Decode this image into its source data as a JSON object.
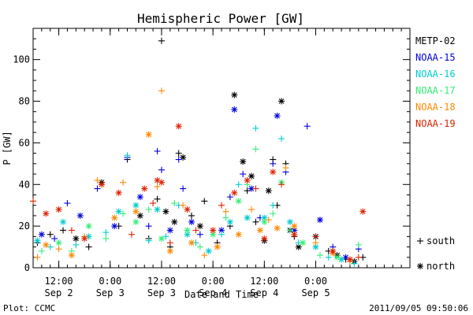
{
  "chart_data": {
    "type": "scatter",
    "title": "Hemispheric Power [GW]",
    "xlabel": "Date and Time",
    "ylabel": "P [GW]",
    "xlim": [
      "2011-09-02 06:00",
      "2011-09-05 22:00"
    ],
    "ylim": [
      0,
      115
    ],
    "y_ticks": [
      0,
      20,
      40,
      60,
      80,
      100
    ],
    "x_ticks": [
      {
        "t": "2011-09-02 12:00",
        "line1": "12:00",
        "line2": "Sep 2"
      },
      {
        "t": "2011-09-03 00:00",
        "line1": "0:00",
        "line2": "Sep 3"
      },
      {
        "t": "2011-09-03 12:00",
        "line1": "12:00",
        "line2": "Sep 3"
      },
      {
        "t": "2011-09-04 00:00",
        "line1": "0:00",
        "line2": "Sep 4"
      },
      {
        "t": "2011-09-04 12:00",
        "line1": "12:00",
        "line2": "Sep 4"
      },
      {
        "t": "2011-09-05 00:00",
        "line1": "0:00",
        "line2": "Sep 5"
      }
    ],
    "hemisphere_symbols": [
      {
        "symbol": "+",
        "label": "south"
      },
      {
        "symbol": "*",
        "label": "north"
      }
    ],
    "series": [
      {
        "name": "METP-02",
        "color": "#000000",
        "points": [
          [
            "2011-09-02 07:00",
            12,
            "+"
          ],
          [
            "2011-09-02 10:00",
            16,
            "+"
          ],
          [
            "2011-09-02 13:00",
            18,
            "+"
          ],
          [
            "2011-09-02 16:00",
            14,
            "*"
          ],
          [
            "2011-09-02 19:00",
            10,
            "+"
          ],
          [
            "2011-09-02 22:00",
            41,
            "*"
          ],
          [
            "2011-09-03 02:00",
            20,
            "+"
          ],
          [
            "2011-09-03 04:00",
            52,
            "+"
          ],
          [
            "2011-09-03 07:00",
            25,
            "*"
          ],
          [
            "2011-09-03 09:00",
            14,
            "+"
          ],
          [
            "2011-09-03 11:00",
            33,
            "+"
          ],
          [
            "2011-09-03 12:00",
            109,
            "+"
          ],
          [
            "2011-09-03 13:00",
            27,
            "*"
          ],
          [
            "2011-09-03 14:00",
            10,
            "+"
          ],
          [
            "2011-09-03 15:00",
            22,
            "*"
          ],
          [
            "2011-09-03 16:00",
            55,
            "+"
          ],
          [
            "2011-09-03 17:00",
            53,
            "*"
          ],
          [
            "2011-09-03 19:00",
            25,
            "+"
          ],
          [
            "2011-09-03 21:00",
            20,
            "*"
          ],
          [
            "2011-09-03 22:00",
            32,
            "+"
          ],
          [
            "2011-09-04 01:00",
            12,
            "+"
          ],
          [
            "2011-09-04 04:00",
            20,
            "+"
          ],
          [
            "2011-09-04 05:00",
            83,
            "*"
          ],
          [
            "2011-09-04 07:00",
            51,
            "*"
          ],
          [
            "2011-09-04 08:00",
            37,
            "+"
          ],
          [
            "2011-09-04 09:00",
            44,
            "*"
          ],
          [
            "2011-09-04 10:00",
            22,
            "+"
          ],
          [
            "2011-09-04 12:00",
            13,
            "*"
          ],
          [
            "2011-09-04 13:00",
            37,
            "*"
          ],
          [
            "2011-09-04 14:00",
            52,
            "+"
          ],
          [
            "2011-09-04 15:00",
            30,
            "+"
          ],
          [
            "2011-09-04 16:00",
            80,
            "*"
          ],
          [
            "2011-09-04 17:00",
            50,
            "+"
          ],
          [
            "2011-09-04 18:00",
            18,
            "*"
          ],
          [
            "2011-09-04 19:00",
            15,
            "+"
          ],
          [
            "2011-09-04 20:00",
            10,
            "*"
          ],
          [
            "2011-09-05 00:00",
            15,
            "*"
          ],
          [
            "2011-09-05 03:00",
            8,
            "+"
          ],
          [
            "2011-09-05 05:00",
            6,
            "*"
          ],
          [
            "2011-09-05 07:00",
            4,
            "+"
          ],
          [
            "2011-09-05 09:00",
            3,
            "*"
          ],
          [
            "2011-09-05 11:00",
            5,
            "+"
          ]
        ]
      },
      {
        "name": "NOAA-15",
        "color": "#0000dd",
        "points": [
          [
            "2011-09-02 08:00",
            16,
            "*"
          ],
          [
            "2011-09-02 11:00",
            14,
            "+"
          ],
          [
            "2011-09-02 14:00",
            31,
            "+"
          ],
          [
            "2011-09-02 17:00",
            25,
            "*"
          ],
          [
            "2011-09-02 21:00",
            38,
            "+"
          ],
          [
            "2011-09-03 01:00",
            20,
            "*"
          ],
          [
            "2011-09-03 04:00",
            53,
            "+"
          ],
          [
            "2011-09-03 07:00",
            34,
            "*"
          ],
          [
            "2011-09-03 09:00",
            20,
            "+"
          ],
          [
            "2011-09-03 11:00",
            56,
            "+"
          ],
          [
            "2011-09-03 12:00",
            47,
            "+"
          ],
          [
            "2011-09-03 14:00",
            18,
            "*"
          ],
          [
            "2011-09-03 16:00",
            52,
            "+"
          ],
          [
            "2011-09-03 17:00",
            38,
            "+"
          ],
          [
            "2011-09-03 19:00",
            22,
            "*"
          ],
          [
            "2011-09-03 21:00",
            16,
            "+"
          ],
          [
            "2011-09-04 02:00",
            18,
            "*"
          ],
          [
            "2011-09-04 04:00",
            34,
            "+"
          ],
          [
            "2011-09-04 05:00",
            76,
            "*"
          ],
          [
            "2011-09-04 07:00",
            45,
            "+"
          ],
          [
            "2011-09-04 09:00",
            38,
            "*"
          ],
          [
            "2011-09-04 11:00",
            24,
            "+"
          ],
          [
            "2011-09-04 14:00",
            50,
            "+"
          ],
          [
            "2011-09-04 15:00",
            73,
            "*"
          ],
          [
            "2011-09-04 17:00",
            46,
            "+"
          ],
          [
            "2011-09-04 19:00",
            18,
            "*"
          ],
          [
            "2011-09-04 22:00",
            68,
            "+"
          ],
          [
            "2011-09-05 01:00",
            23,
            "*"
          ],
          [
            "2011-09-05 04:00",
            10,
            "+"
          ],
          [
            "2011-09-05 07:00",
            5,
            "*"
          ],
          [
            "2011-09-05 10:00",
            9,
            "+"
          ]
        ]
      },
      {
        "name": "NOAA-16",
        "color": "#00cccc",
        "points": [
          [
            "2011-09-02 07:00",
            13,
            "*"
          ],
          [
            "2011-09-02 10:00",
            10,
            "+"
          ],
          [
            "2011-09-02 13:00",
            22,
            "*"
          ],
          [
            "2011-09-02 16:00",
            11,
            "+"
          ],
          [
            "2011-09-02 19:00",
            15,
            "*"
          ],
          [
            "2011-09-02 23:00",
            17,
            "+"
          ],
          [
            "2011-09-03 02:00",
            27,
            "*"
          ],
          [
            "2011-09-03 04:00",
            54,
            "+"
          ],
          [
            "2011-09-03 06:00",
            30,
            "*"
          ],
          [
            "2011-09-03 09:00",
            13,
            "+"
          ],
          [
            "2011-09-03 11:00",
            28,
            "*"
          ],
          [
            "2011-09-03 13:00",
            15,
            "+"
          ],
          [
            "2011-09-03 16:00",
            30,
            "+"
          ],
          [
            "2011-09-03 18:00",
            16,
            "*"
          ],
          [
            "2011-09-03 20:00",
            12,
            "+"
          ],
          [
            "2011-09-03 23:00",
            8,
            "*"
          ],
          [
            "2011-09-04 02:00",
            16,
            "+"
          ],
          [
            "2011-09-04 04:00",
            22,
            "*"
          ],
          [
            "2011-09-04 06:00",
            40,
            "+"
          ],
          [
            "2011-09-04 08:00",
            24,
            "*"
          ],
          [
            "2011-09-04 10:00",
            67,
            "+"
          ],
          [
            "2011-09-04 12:00",
            24,
            "*"
          ],
          [
            "2011-09-04 14:00",
            30,
            "+"
          ],
          [
            "2011-09-04 16:00",
            62,
            "+"
          ],
          [
            "2011-09-04 18:00",
            22,
            "*"
          ],
          [
            "2011-09-04 20:00",
            12,
            "+"
          ],
          [
            "2011-09-05 00:00",
            10,
            "*"
          ],
          [
            "2011-09-05 03:00",
            5,
            "+"
          ],
          [
            "2011-09-05 06:00",
            4,
            "*"
          ],
          [
            "2011-09-05 09:00",
            2,
            "+"
          ]
        ]
      },
      {
        "name": "NOAA-17",
        "color": "#33ee77",
        "points": [
          [
            "2011-09-02 08:00",
            8,
            "+"
          ],
          [
            "2011-09-02 12:00",
            12,
            "*"
          ],
          [
            "2011-09-02 15:00",
            8,
            "+"
          ],
          [
            "2011-09-02 19:00",
            20,
            "*"
          ],
          [
            "2011-09-02 23:00",
            14,
            "+"
          ],
          [
            "2011-09-03 03:00",
            26,
            "+"
          ],
          [
            "2011-09-03 06:00",
            22,
            "*"
          ],
          [
            "2011-09-03 09:00",
            28,
            "+"
          ],
          [
            "2011-09-03 12:00",
            14,
            "*"
          ],
          [
            "2011-09-03 15:00",
            31,
            "+"
          ],
          [
            "2011-09-03 18:00",
            18,
            "*"
          ],
          [
            "2011-09-03 21:00",
            10,
            "+"
          ],
          [
            "2011-09-04 00:00",
            16,
            "*"
          ],
          [
            "2011-09-04 03:00",
            24,
            "+"
          ],
          [
            "2011-09-04 06:00",
            32,
            "*"
          ],
          [
            "2011-09-04 08:00",
            40,
            "+"
          ],
          [
            "2011-09-04 10:00",
            57,
            "+"
          ],
          [
            "2011-09-04 12:00",
            22,
            "*"
          ],
          [
            "2011-09-04 14:00",
            26,
            "+"
          ],
          [
            "2011-09-04 16:00",
            41,
            "*"
          ],
          [
            "2011-09-04 18:00",
            18,
            "+"
          ],
          [
            "2011-09-04 21:00",
            12,
            "*"
          ],
          [
            "2011-09-05 01:00",
            6,
            "+"
          ],
          [
            "2011-09-05 05:00",
            5,
            "*"
          ],
          [
            "2011-09-05 10:00",
            11,
            "+"
          ]
        ]
      },
      {
        "name": "NOAA-18",
        "color": "#ff8800",
        "points": [
          [
            "2011-09-02 07:00",
            5,
            "+"
          ],
          [
            "2011-09-02 09:00",
            11,
            "*"
          ],
          [
            "2011-09-02 12:00",
            9,
            "+"
          ],
          [
            "2011-09-02 15:00",
            6,
            "*"
          ],
          [
            "2011-09-02 18:00",
            15,
            "+"
          ],
          [
            "2011-09-02 21:00",
            42,
            "+"
          ],
          [
            "2011-09-03 01:00",
            24,
            "*"
          ],
          [
            "2011-09-03 03:00",
            41,
            "+"
          ],
          [
            "2011-09-03 06:00",
            27,
            "*"
          ],
          [
            "2011-09-03 09:00",
            64,
            "*"
          ],
          [
            "2011-09-03 11:00",
            39,
            "+"
          ],
          [
            "2011-09-03 12:00",
            85,
            "+"
          ],
          [
            "2011-09-03 14:00",
            8,
            "*"
          ],
          [
            "2011-09-03 17:00",
            30,
            "+"
          ],
          [
            "2011-09-03 19:00",
            12,
            "*"
          ],
          [
            "2011-09-03 22:00",
            6,
            "+"
          ],
          [
            "2011-09-04 01:00",
            10,
            "*"
          ],
          [
            "2011-09-04 03:00",
            27,
            "+"
          ],
          [
            "2011-09-04 06:00",
            16,
            "*"
          ],
          [
            "2011-09-04 09:00",
            28,
            "+"
          ],
          [
            "2011-09-04 11:00",
            18,
            "*"
          ],
          [
            "2011-09-04 13:00",
            23,
            "+"
          ],
          [
            "2011-09-04 15:00",
            19,
            "*"
          ],
          [
            "2011-09-04 17:00",
            48,
            "+"
          ],
          [
            "2011-09-04 19:00",
            20,
            "*"
          ],
          [
            "2011-09-05 00:00",
            12,
            "+"
          ],
          [
            "2011-09-05 04:00",
            7,
            "*"
          ],
          [
            "2011-09-05 08:00",
            3,
            "+"
          ]
        ]
      },
      {
        "name": "NOAA-19",
        "color": "#dd2200",
        "points": [
          [
            "2011-09-02 06:00",
            32,
            "+"
          ],
          [
            "2011-09-02 09:00",
            26,
            "*"
          ],
          [
            "2011-09-02 12:00",
            28,
            "*"
          ],
          [
            "2011-09-02 15:00",
            18,
            "+"
          ],
          [
            "2011-09-02 18:00",
            14,
            "*"
          ],
          [
            "2011-09-02 22:00",
            40,
            "*"
          ],
          [
            "2011-09-03 02:00",
            36,
            "*"
          ],
          [
            "2011-09-03 05:00",
            16,
            "+"
          ],
          [
            "2011-09-03 08:00",
            38,
            "*"
          ],
          [
            "2011-09-03 10:00",
            31,
            "+"
          ],
          [
            "2011-09-03 11:00",
            42,
            "*"
          ],
          [
            "2011-09-03 12:00",
            41,
            "*"
          ],
          [
            "2011-09-03 14:00",
            12,
            "+"
          ],
          [
            "2011-09-03 16:00",
            68,
            "*"
          ],
          [
            "2011-09-03 18:00",
            28,
            "*"
          ],
          [
            "2011-09-03 20:00",
            18,
            "+"
          ],
          [
            "2011-09-04 00:00",
            18,
            "*"
          ],
          [
            "2011-09-04 02:00",
            30,
            "+"
          ],
          [
            "2011-09-04 05:00",
            36,
            "*"
          ],
          [
            "2011-09-04 08:00",
            42,
            "*"
          ],
          [
            "2011-09-04 10:00",
            38,
            "+"
          ],
          [
            "2011-09-04 12:00",
            14,
            "*"
          ],
          [
            "2011-09-04 14:00",
            46,
            "*"
          ],
          [
            "2011-09-04 16:00",
            40,
            "+"
          ],
          [
            "2011-09-04 19:00",
            16,
            "*"
          ],
          [
            "2011-09-05 00:00",
            15,
            "+"
          ],
          [
            "2011-09-05 04:00",
            8,
            "*"
          ],
          [
            "2011-09-05 08:00",
            4,
            "*"
          ],
          [
            "2011-09-05 10:00",
            5,
            "+"
          ],
          [
            "2011-09-05 11:00",
            27,
            "*"
          ]
        ]
      }
    ]
  },
  "footer": {
    "left": "Plot: CCMC",
    "right": "2011/09/05 09:50:06"
  }
}
